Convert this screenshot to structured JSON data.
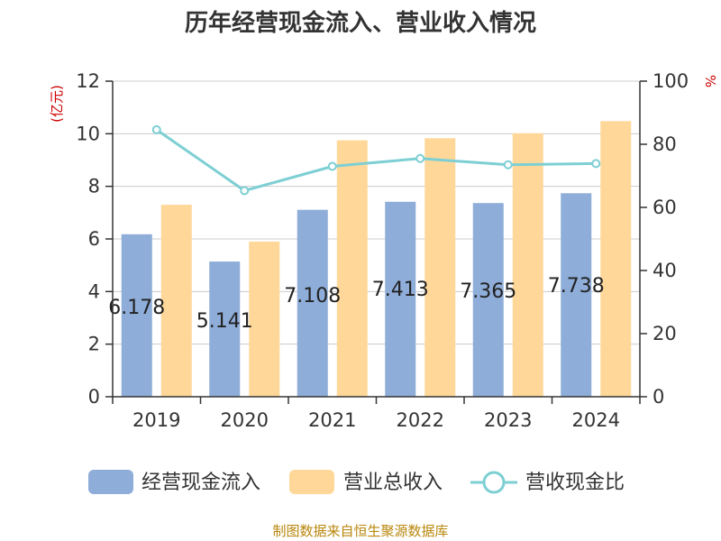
{
  "title": "历年经营现金流入、营业收入情况",
  "source": "制图数据来自恒生聚源数据库",
  "chart_data": {
    "type": "bar",
    "title": "历年经营现金流入、营业收入情况",
    "categories": [
      "2019",
      "2020",
      "2021",
      "2022",
      "2023",
      "2024"
    ],
    "left_axis": {
      "unit": "(亿元)",
      "ylim": [
        0,
        12
      ],
      "ticks": [
        "0",
        "2",
        "4",
        "6",
        "8",
        "10",
        "12"
      ]
    },
    "right_axis": {
      "unit": "%",
      "ylim": [
        0,
        100
      ],
      "ticks": [
        "0",
        "20",
        "40",
        "60",
        "80",
        "100"
      ]
    },
    "series": [
      {
        "name": "经营现金流入",
        "type": "bar",
        "axis": "left",
        "values": [
          6.178,
          5.141,
          7.108,
          7.413,
          7.365,
          7.738
        ],
        "labels": [
          "6.178",
          "5.141",
          "7.108",
          "7.413",
          "7.365",
          "7.738"
        ],
        "color": "#8eadd9"
      },
      {
        "name": "营业总收入",
        "type": "bar",
        "axis": "left",
        "values": [
          7.3,
          5.9,
          9.75,
          9.83,
          10.02,
          10.48
        ],
        "color": "#ffd899"
      },
      {
        "name": "营收现金比",
        "type": "line",
        "axis": "right",
        "values": [
          84.6,
          65.3,
          73.0,
          75.5,
          73.5,
          73.9
        ],
        "color": "#7dcfd4"
      }
    ],
    "grid": true,
    "legend_position": "bottom"
  },
  "colors": {
    "unit_red": "#cc0000",
    "source_gold": "#b8860b",
    "axis": "#333333",
    "grid": "#cccccc"
  }
}
